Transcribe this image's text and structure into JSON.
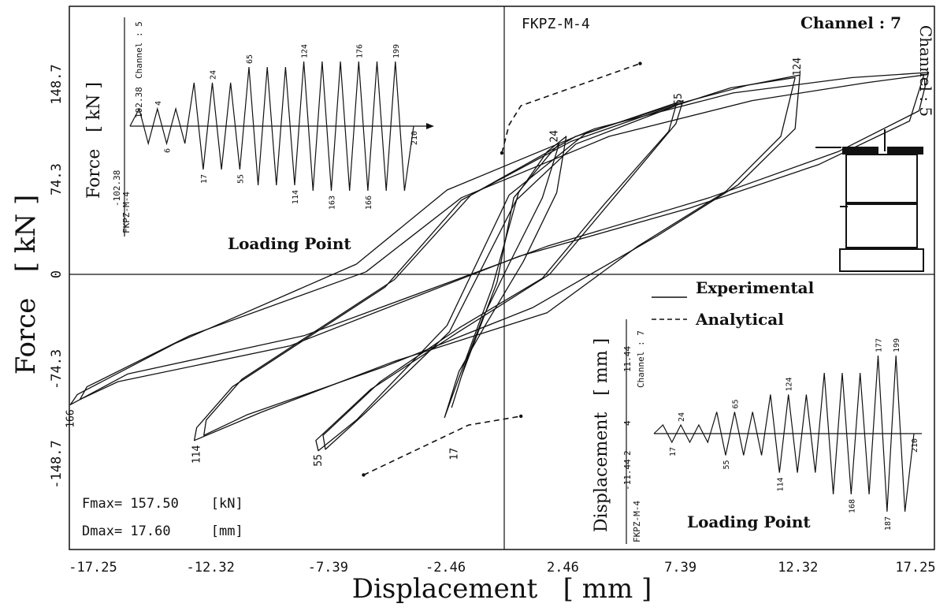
{
  "chart_data": {
    "type": "line",
    "title": "FKPZ-M-4",
    "channel_label": "Channel : 7",
    "right_channel_label": "Channel : 5",
    "xlabel": "Displacement   [ mm ]",
    "ylabel": "Force   [ kN ]",
    "xlim": [
      -20.5,
      20.5
    ],
    "ylim": [
      -170,
      170
    ],
    "x_ticks": [
      "-17.25",
      "-12.32",
      "-7.39",
      "-2.46",
      "2.46",
      "7.39",
      "12.32",
      "17.25"
    ],
    "x_tick_values": [
      -17.25,
      -12.32,
      -7.39,
      -2.46,
      2.46,
      7.39,
      12.32,
      17.25
    ],
    "y_ticks": [
      "148.7",
      "74.3",
      "0",
      "-74.3",
      "-148.7"
    ],
    "y_tick_values": [
      148.7,
      74.3,
      0,
      -74.3,
      -148.7
    ],
    "legend": {
      "experimental": "Experimental",
      "analytical": "Analytical"
    },
    "stats": {
      "fmax": "Fmax= 157.50    [kN]",
      "dmax": "Dmax= 17.60     [mm]"
    },
    "point_labels": [
      {
        "text": "124",
        "x": 12.3,
        "y": 154
      },
      {
        "text": "55",
        "x": 7.3,
        "y": 131
      },
      {
        "text": "24",
        "x": 2.1,
        "y": 102
      },
      {
        "text": "166",
        "x": -18.2,
        "y": -102
      },
      {
        "text": "114",
        "x": -12.9,
        "y": -130
      },
      {
        "text": "55",
        "x": -7.8,
        "y": -137
      },
      {
        "text": "17",
        "x": -2.1,
        "y": -132
      }
    ],
    "series": [
      {
        "name": "Experimental",
        "style": "solid",
        "loops": [
          {
            "x": [
              -0.3,
              0.4,
              1.9,
              2.3,
              1.6,
              0.2,
              -0.9,
              -1.6,
              -2.2,
              -1.8,
              -0.3
            ],
            "y": [
              -6,
              60,
              94,
              102,
              60,
              8,
              -34,
              -68,
              -104,
              -80,
              -6
            ]
          },
          {
            "x": [
              -0.5,
              0.6,
              1.8,
              2.6,
              2.2,
              0.8,
              -0.8,
              -1.9,
              -2.5,
              -2.0,
              -0.5
            ],
            "y": [
              -10,
              64,
              96,
              108,
              64,
              10,
              -40,
              -76,
              -112,
              -86,
              -10
            ]
          },
          {
            "x": [
              -2.3,
              0.5,
              3.0,
              7.2,
              6.9,
              4.2,
              1.6,
              -1.9,
              -5.2,
              -7.6,
              -7.5,
              -5.8,
              -2.3
            ],
            "y": [
              -45,
              58,
              102,
              132,
              112,
              55,
              -3,
              -42,
              -84,
              -126,
              -137,
              -108,
              -45
            ]
          },
          {
            "x": [
              -2.4,
              0.2,
              3.4,
              7.5,
              7.2,
              4.6,
              1.9,
              -2.0,
              -5.6,
              -7.9,
              -7.8,
              -6.2,
              -2.4
            ],
            "y": [
              -40,
              62,
              110,
              136,
              118,
              60,
              0,
              -46,
              -90,
              -130,
              -138,
              -114,
              -40
            ]
          },
          {
            "x": [
              -5.0,
              -1.8,
              2.8,
              6.5,
              9.5,
              12.2,
              11.6,
              9.3,
              5.6,
              1.8,
              -4.6,
              -10.2,
              -13.0,
              -12.9,
              -11.4,
              -5.0
            ],
            "y": [
              -10,
              58,
              104,
              128,
              146,
              154,
              108,
              65,
              22,
              -30,
              -68,
              -108,
              -130,
              -120,
              -88,
              -10
            ]
          },
          {
            "x": [
              -4.6,
              -1.4,
              3.0,
              7.0,
              10.2,
              12.4,
              12.2,
              9.8,
              6.4,
              1.2,
              -5.0,
              -10.8,
              -12.6,
              -12.5,
              -11.0,
              -4.6
            ],
            "y": [
              -4,
              62,
              108,
              132,
              148,
              156,
              114,
              70,
              30,
              -26,
              -72,
              -110,
              -126,
              -114,
              -82,
              -4
            ]
          },
          {
            "x": [
              -6.2,
              -2.4,
              3.8,
              9.6,
              14.6,
              17.8,
              17.4,
              14.0,
              8.6,
              1.8,
              -8.4,
              -15.8,
              -18.2,
              -17.9,
              -13.8,
              -6.2
            ],
            "y": [
              8,
              66,
              114,
              142,
              154,
              158,
              128,
              96,
              60,
              22,
              -48,
              -78,
              -102,
              -94,
              -54,
              8
            ]
          },
          {
            "x": [
              -5.8,
              -1.8,
              4.4,
              10.4,
              15.2,
              17.6,
              17.0,
              13.2,
              7.8,
              0.6,
              -9.0,
              -16.2,
              -17.8,
              -17.5,
              -13.2,
              -5.8
            ],
            "y": [
              2,
              60,
              108,
              136,
              150,
              156,
              120,
              86,
              52,
              14,
              -56,
              -84,
              -98,
              -88,
              -48,
              2
            ]
          }
        ]
      },
      {
        "name": "Analytical",
        "style": "dashed",
        "loops": [
          {
            "x": [
              -5.9,
              -1.5,
              0.7
            ],
            "y": [
              -157,
              -118,
              -111
            ]
          },
          {
            "x": [
              -0.1,
              0.2,
              0.7,
              5.7
            ],
            "y": [
              95,
              117,
              132,
              165
            ]
          }
        ]
      }
    ],
    "inset_force": {
      "y_axis_label": "Force   [ kN ]",
      "x_label": "Loading Point",
      "channel": "Channel : 5",
      "specimen": "FKPZ-M-4",
      "y_max_label": "102.38",
      "y_min_label": "-102.38",
      "amplitudes": [
        0.22,
        0.22,
        0.22,
        0.22,
        0.22,
        0.22,
        0.55,
        0.55,
        0.55,
        0.55,
        0.55,
        0.55,
        0.75,
        0.75,
        0.75,
        0.75,
        0.75,
        0.75,
        0.82,
        0.82,
        0.82,
        0.82,
        0.82,
        0.82,
        0.82,
        0.82,
        0.82,
        0.82,
        0.82,
        0.82
      ],
      "point_labels": [
        {
          "text": "4",
          "i": 2
        },
        {
          "text": "6",
          "i": 3
        },
        {
          "text": "24",
          "i": 8
        },
        {
          "text": "17",
          "i": 7
        },
        {
          "text": "65",
          "i": 12
        },
        {
          "text": "55",
          "i": 11
        },
        {
          "text": "124",
          "i": 18
        },
        {
          "text": "114",
          "i": 17
        },
        {
          "text": "176",
          "i": 24
        },
        {
          "text": "163",
          "i": 21
        },
        {
          "text": "199",
          "i": 28
        },
        {
          "text": "166",
          "i": 25
        },
        {
          "text": "210",
          "i": 30
        }
      ]
    },
    "inset_disp": {
      "y_axis_label": "Displacement   [ mm ]",
      "x_label": "Loading Point",
      "channel": "Channel : 7",
      "specimen": "FKPZ-M-4",
      "y_max_label": "11.44",
      "y_min_label": "-11.44",
      "y_small_pos": "4",
      "y_small_neg": "2",
      "amplitudes": [
        0.1,
        0.1,
        0.1,
        0.1,
        0.1,
        0.1,
        0.25,
        0.25,
        0.25,
        0.25,
        0.25,
        0.25,
        0.45,
        0.45,
        0.45,
        0.45,
        0.45,
        0.45,
        0.7,
        0.7,
        0.7,
        0.7,
        0.7,
        0.7,
        0.9,
        0.9,
        0.9,
        0.9
      ],
      "point_labels": [
        {
          "text": "24",
          "i": 2
        },
        {
          "text": "17",
          "i": 1
        },
        {
          "text": "65",
          "i": 8
        },
        {
          "text": "55",
          "i": 7
        },
        {
          "text": "124",
          "i": 14
        },
        {
          "text": "114",
          "i": 13
        },
        {
          "text": "177",
          "i": 24
        },
        {
          "text": "168",
          "i": 21
        },
        {
          "text": "187",
          "i": 25
        },
        {
          "text": "199",
          "i": 26
        },
        {
          "text": "210",
          "i": 28
        }
      ]
    }
  }
}
